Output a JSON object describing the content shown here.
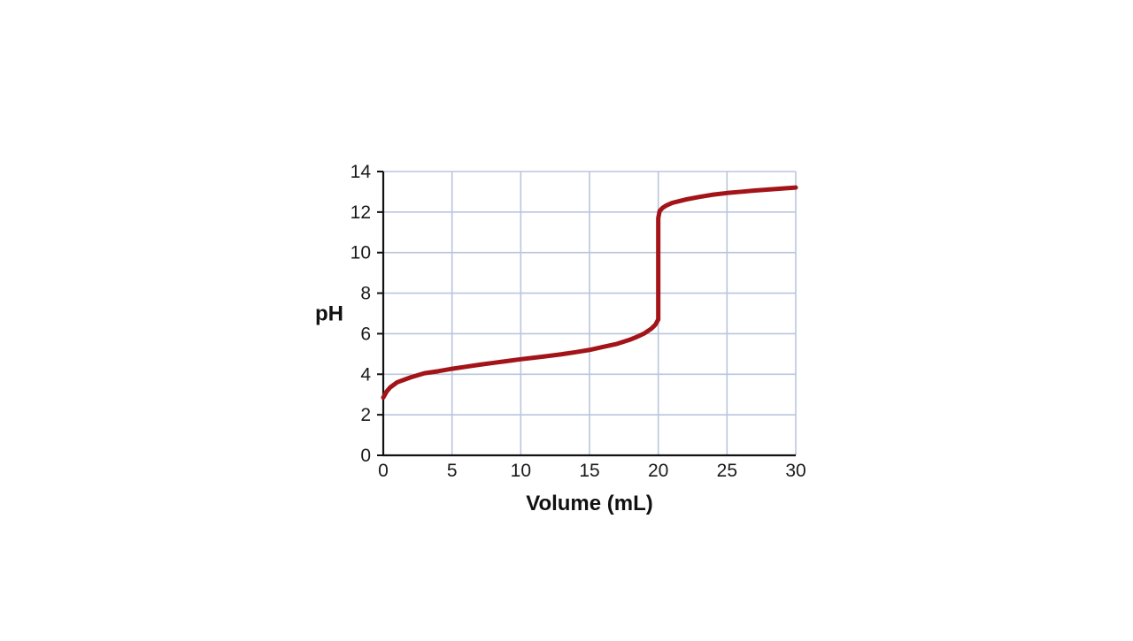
{
  "chart_data": {
    "type": "line",
    "title": "",
    "xlabel": "Volume (mL)",
    "ylabel": "pH",
    "xlim": [
      0,
      30
    ],
    "ylim": [
      0,
      14
    ],
    "x_ticks": [
      0,
      5,
      10,
      15,
      20,
      25,
      30
    ],
    "y_ticks": [
      0,
      2,
      4,
      6,
      8,
      10,
      12,
      14
    ],
    "grid": true,
    "legend": "none",
    "colors": {
      "line": "#a31419",
      "grid": "#b9c6dd",
      "axis": "#111111"
    },
    "series": [
      {
        "x": [
          0,
          0.25,
          0.5,
          1,
          2,
          3,
          4,
          5,
          6,
          7,
          8,
          9,
          10,
          11,
          12,
          13,
          14,
          15,
          16,
          17,
          18,
          18.5,
          19,
          19.5,
          19.8,
          20,
          20,
          20.1,
          20.3,
          20.6,
          21,
          22,
          23,
          24,
          25,
          26,
          27,
          28,
          29,
          30
        ],
        "y": [
          2.85,
          3.15,
          3.35,
          3.6,
          3.85,
          4.05,
          4.15,
          4.27,
          4.37,
          4.47,
          4.56,
          4.65,
          4.74,
          4.82,
          4.9,
          4.99,
          5.09,
          5.2,
          5.35,
          5.5,
          5.72,
          5.86,
          6.02,
          6.25,
          6.45,
          6.7,
          11.7,
          12.05,
          12.2,
          12.33,
          12.45,
          12.62,
          12.75,
          12.86,
          12.94,
          13.0,
          13.06,
          13.11,
          13.16,
          13.21
        ]
      }
    ]
  }
}
